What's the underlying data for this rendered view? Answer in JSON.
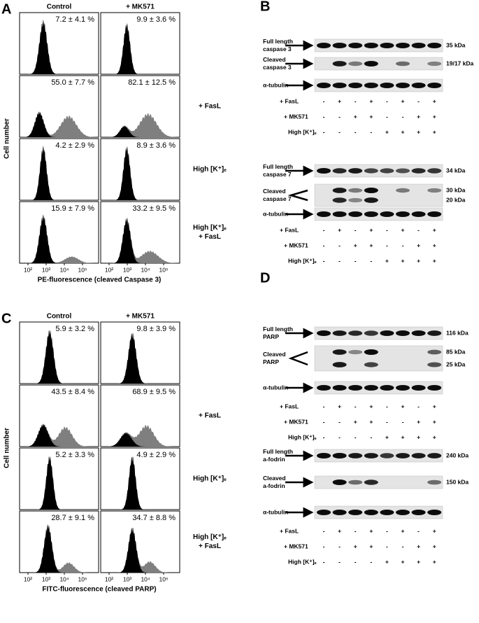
{
  "panel_a": {
    "letter": "A",
    "columns": [
      "Control",
      "+ MK571"
    ],
    "rows": [
      {
        "values": [
          "7.2 ± 4.1 %",
          "9.9 ± 3.6 %"
        ]
      },
      {
        "label": [
          "+ FasL"
        ],
        "values": [
          "55.0 ± 7.7 %",
          "82.1 ± 12.5 %"
        ]
      },
      {
        "label": [
          "High [K⁺]ₑ"
        ],
        "values": [
          "4.2 ± 2.9 %",
          "8.9 ± 3.6 %"
        ]
      },
      {
        "label": [
          "High [K⁺]ₑ",
          "+ FasL"
        ],
        "values": [
          "15.9 ± 7.9 %",
          "33.2 ± 9.5 %"
        ]
      }
    ],
    "y_label": "Cell number",
    "x_label": "PE-fluorescence (cleaved Caspase 3)",
    "x_ticks": [
      "10²",
      "10³",
      "10⁴",
      "10⁵"
    ]
  },
  "panel_c": {
    "letter": "C",
    "columns": [
      "Control",
      "+ MK571"
    ],
    "rows": [
      {
        "values": [
          "5.9 ± 3.2 %",
          "9.8 ± 3.9 %"
        ]
      },
      {
        "label": [
          "+ FasL"
        ],
        "values": [
          "43.5 ± 8.4 %",
          "68.9 ± 9.5 %"
        ]
      },
      {
        "label": [
          "High [K⁺]ₑ"
        ],
        "values": [
          "5.2 ± 3.3 %",
          "4.9 ± 2.9 %"
        ]
      },
      {
        "label": [
          "High [K⁺]ₑ",
          "+ FasL"
        ],
        "values": [
          "28.7 ± 9.1 %",
          "34.7 ± 8.8 %"
        ]
      }
    ],
    "y_label": "Cell number",
    "x_label": "FITC-fluorescence (cleaved PARP)",
    "x_ticks": [
      "10²",
      "10³",
      "10⁴",
      "10⁵"
    ]
  },
  "panel_b": {
    "letter": "B",
    "blots": [
      {
        "rows": [
          {
            "label": [
              "Full length",
              "caspase 3"
            ],
            "sizes": [
              "35 kDa"
            ]
          },
          {
            "label": [
              "Cleaved",
              "caspase 3"
            ],
            "sizes": [
              "19/17 kDa"
            ]
          },
          {
            "label": [
              "α-tubulin"
            ]
          }
        ],
        "treatments": [
          {
            "label": "+ FasL",
            "signs": [
              "-",
              "+",
              "-",
              "+",
              "-",
              "+",
              "-",
              "+"
            ]
          },
          {
            "label": "+ MK571",
            "signs": [
              "-",
              "-",
              "+",
              "+",
              "-",
              "-",
              "+",
              "+"
            ]
          },
          {
            "label": "High [K⁺]ₑ",
            "signs": [
              "-",
              "-",
              "-",
              "-",
              "+",
              "+",
              "+",
              "+"
            ]
          }
        ]
      },
      {
        "rows": [
          {
            "label": [
              "Full length",
              "caspase 7"
            ],
            "sizes": [
              "34 kDa"
            ]
          },
          {
            "label": [
              "Cleaved",
              "caspase 7"
            ],
            "sizes": [
              "30 kDa",
              "20 kDa"
            ]
          },
          {
            "label": [
              "α-tubulin"
            ]
          }
        ],
        "treatments": [
          {
            "label": "+ FasL",
            "signs": [
              "-",
              "+",
              "-",
              "+",
              "-",
              "+",
              "-",
              "+"
            ]
          },
          {
            "label": "+ MK571",
            "signs": [
              "-",
              "-",
              "+",
              "+",
              "-",
              "-",
              "+",
              "+"
            ]
          },
          {
            "label": "High [K⁺]ₑ",
            "signs": [
              "-",
              "-",
              "-",
              "-",
              "+",
              "+",
              "+",
              "+"
            ]
          }
        ]
      }
    ]
  },
  "panel_d": {
    "letter": "D",
    "blots": [
      {
        "rows": [
          {
            "label": [
              "Full length",
              "PARP"
            ],
            "sizes": [
              "116 kDa"
            ]
          },
          {
            "label": [
              "Cleaved",
              "PARP"
            ],
            "sizes": [
              "85 kDa",
              "25 kDa"
            ]
          },
          {
            "label": [
              "α-tubulin"
            ]
          }
        ],
        "treatments": [
          {
            "label": "+ FasL",
            "signs": [
              "-",
              "+",
              "-",
              "+",
              "-",
              "+",
              "-",
              "+"
            ]
          },
          {
            "label": "+ MK571",
            "signs": [
              "-",
              "-",
              "+",
              "+",
              "-",
              "-",
              "+",
              "+"
            ]
          },
          {
            "label": "High [K⁺]ₑ",
            "signs": [
              "-",
              "-",
              "-",
              "-",
              "+",
              "+",
              "+",
              "+"
            ]
          }
        ]
      },
      {
        "rows": [
          {
            "label": [
              "Full length",
              "a-fodrin"
            ],
            "sizes": [
              "240 kDa"
            ]
          },
          {
            "label": [
              "Cleaved",
              "a-fodrin"
            ],
            "sizes": [
              "150 kDa"
            ]
          },
          {
            "label": [
              "α-tubulin"
            ]
          }
        ],
        "treatments": [
          {
            "label": "+ FasL",
            "signs": [
              "-",
              "+",
              "-",
              "+",
              "-",
              "+",
              "-",
              "+"
            ]
          },
          {
            "label": "+ MK571",
            "signs": [
              "-",
              "-",
              "+",
              "+",
              "-",
              "-",
              "+",
              "+"
            ]
          },
          {
            "label": "High [K⁺]ₑ",
            "signs": [
              "-",
              "-",
              "-",
              "-",
              "+",
              "+",
              "+",
              "+"
            ]
          }
        ]
      }
    ]
  }
}
